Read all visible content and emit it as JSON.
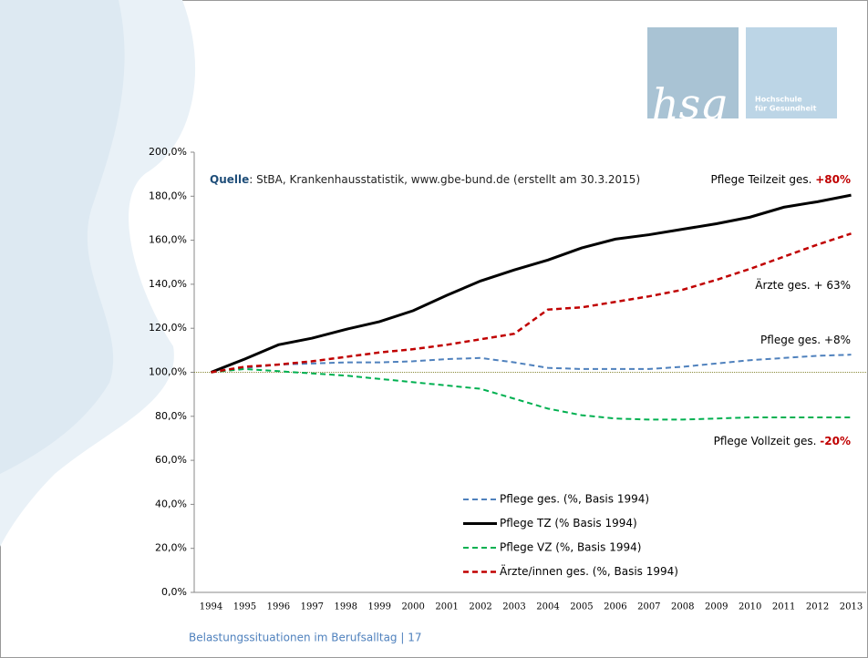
{
  "logo": {
    "mark": "hsg",
    "line1": "Hochschule",
    "line2": "für Gesundheit"
  },
  "footer": "Belastungssituationen im Berufsalltag | 17",
  "chart_data": {
    "type": "line",
    "source_label": "Quelle",
    "source_text": ": StBA, Krankenhausstatistik, www.gbe-bund.de  (erstellt am 30.3.2015)",
    "annotations": [
      {
        "text": "Pflege Teilzeit ges. ",
        "highlight": "+80%"
      },
      {
        "text": "Ärzte ges. + 63%"
      },
      {
        "text": "Pflege ges. +8%"
      },
      {
        "text": "Pflege Vollzeit ges. ",
        "highlight": "-20%"
      }
    ],
    "categories": [
      "1994",
      "1995",
      "1996",
      "1997",
      "1998",
      "1999",
      "2000",
      "2001",
      "2002",
      "2003",
      "2004",
      "2005",
      "2006",
      "2007",
      "2008",
      "2009",
      "2010",
      "2011",
      "2012",
      "2013"
    ],
    "series": [
      {
        "name": "Pflege ges. (%, Basis 1994)",
        "color": "#4f81bd",
        "dash": true,
        "width": 2,
        "values": [
          100,
          102,
          103.5,
          104,
          104.5,
          104.5,
          105,
          106,
          106.5,
          104.5,
          102,
          101.5,
          101.5,
          101.5,
          102.5,
          104,
          105.5,
          106.5,
          107.5,
          108
        ]
      },
      {
        "name": "Pflege TZ (% Basis 1994)",
        "color": "#000000",
        "dash": false,
        "width": 3,
        "values": [
          100,
          106,
          112.5,
          115.5,
          119.5,
          123,
          128,
          135,
          141.5,
          146.5,
          151,
          156.5,
          160.5,
          162.5,
          165,
          167.5,
          170.5,
          175,
          177.5,
          180.5
        ]
      },
      {
        "name": "Pflege VZ (%, Basis 1994)",
        "color": "#00b050",
        "dash": true,
        "width": 2,
        "values": [
          100,
          101.5,
          100.5,
          99.5,
          98.5,
          97,
          95.5,
          94,
          92.5,
          88,
          83.5,
          80.5,
          79,
          78.5,
          78.5,
          79,
          79.5,
          79.5,
          79.5,
          79.5
        ]
      },
      {
        "name": "Ärzte/innen ges. (%, Basis 1994)",
        "color": "#c00000",
        "dash": true,
        "width": 2.5,
        "values": [
          100,
          102.5,
          103.5,
          105,
          107,
          109,
          110.5,
          112.5,
          115,
          117.5,
          128.5,
          129.5,
          132,
          134.5,
          137.5,
          142,
          147,
          152.5,
          158,
          163
        ]
      }
    ],
    "baseline": 100,
    "ylim": [
      0,
      200
    ],
    "yticks": [
      {
        "value": 0,
        "label": "0,0%"
      },
      {
        "value": 20,
        "label": "20,0%"
      },
      {
        "value": 40,
        "label": "40,0%"
      },
      {
        "value": 60,
        "label": "60,0%"
      },
      {
        "value": 80,
        "label": "80,0%"
      },
      {
        "value": 100,
        "label": "100,0%"
      },
      {
        "value": 120,
        "label": "120,0%"
      },
      {
        "value": 140,
        "label": "140,0%"
      },
      {
        "value": 160,
        "label": "160,0%"
      },
      {
        "value": 180,
        "label": "180,0%"
      },
      {
        "value": 200,
        "label": "200,0%"
      }
    ]
  }
}
